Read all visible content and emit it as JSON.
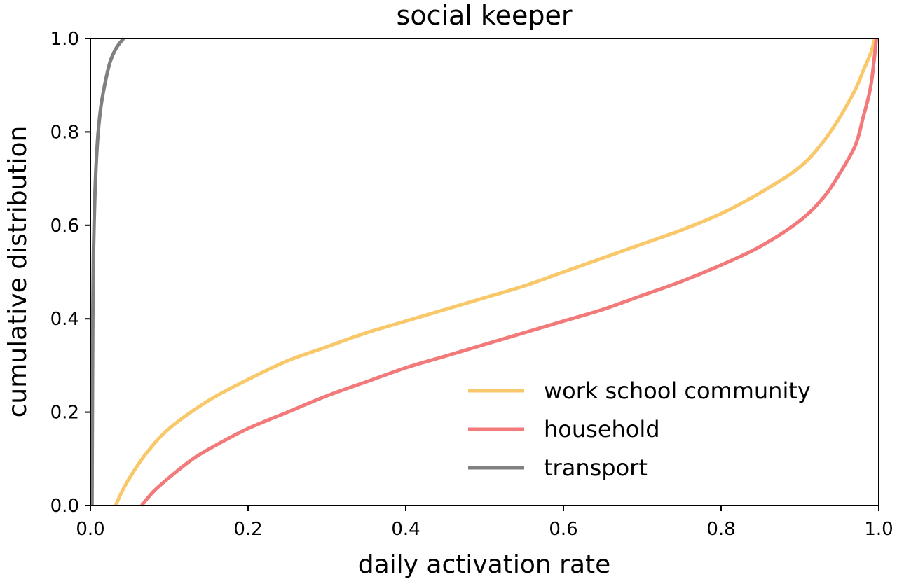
{
  "chart_data": {
    "type": "line",
    "title": "social keeper",
    "xlabel": "daily activation rate",
    "ylabel": "cumulative distribution",
    "xlim": [
      0.0,
      1.0
    ],
    "ylim": [
      0.0,
      1.0
    ],
    "xticks": [
      "0.0",
      "0.2",
      "0.4",
      "0.6",
      "0.8",
      "1.0"
    ],
    "yticks": [
      "0.0",
      "0.2",
      "0.4",
      "0.6",
      "0.8",
      "1.0"
    ],
    "grid": false,
    "legend_position": "lower-right",
    "series": [
      {
        "name": "work school community",
        "color": "#f9c86b",
        "x": [
          0.032,
          0.04,
          0.05,
          0.07,
          0.1,
          0.15,
          0.2,
          0.25,
          0.3,
          0.35,
          0.4,
          0.45,
          0.5,
          0.55,
          0.6,
          0.65,
          0.7,
          0.75,
          0.8,
          0.85,
          0.9,
          0.93,
          0.95,
          0.97,
          0.98,
          0.99,
          0.995
        ],
        "y": [
          0.0,
          0.03,
          0.06,
          0.11,
          0.165,
          0.225,
          0.27,
          0.31,
          0.34,
          0.37,
          0.395,
          0.42,
          0.445,
          0.47,
          0.5,
          0.53,
          0.56,
          0.59,
          0.625,
          0.67,
          0.725,
          0.78,
          0.83,
          0.89,
          0.93,
          0.97,
          1.0
        ]
      },
      {
        "name": "household",
        "color": "#f27a7a",
        "x": [
          0.065,
          0.08,
          0.1,
          0.13,
          0.16,
          0.2,
          0.25,
          0.3,
          0.35,
          0.4,
          0.45,
          0.5,
          0.55,
          0.6,
          0.65,
          0.7,
          0.75,
          0.8,
          0.85,
          0.9,
          0.93,
          0.95,
          0.97,
          0.98,
          0.99,
          0.997
        ],
        "y": [
          0.0,
          0.03,
          0.06,
          0.1,
          0.13,
          0.165,
          0.2,
          0.235,
          0.265,
          0.295,
          0.32,
          0.345,
          0.37,
          0.395,
          0.42,
          0.45,
          0.48,
          0.515,
          0.555,
          0.61,
          0.66,
          0.71,
          0.77,
          0.83,
          0.9,
          1.0
        ]
      },
      {
        "name": "transport",
        "color": "#808080",
        "x": [
          0.002,
          0.0025,
          0.003,
          0.004,
          0.006,
          0.009,
          0.013,
          0.018,
          0.025,
          0.033,
          0.042
        ],
        "y": [
          0.0,
          0.2,
          0.4,
          0.55,
          0.68,
          0.78,
          0.85,
          0.9,
          0.95,
          0.98,
          1.0
        ]
      }
    ]
  }
}
